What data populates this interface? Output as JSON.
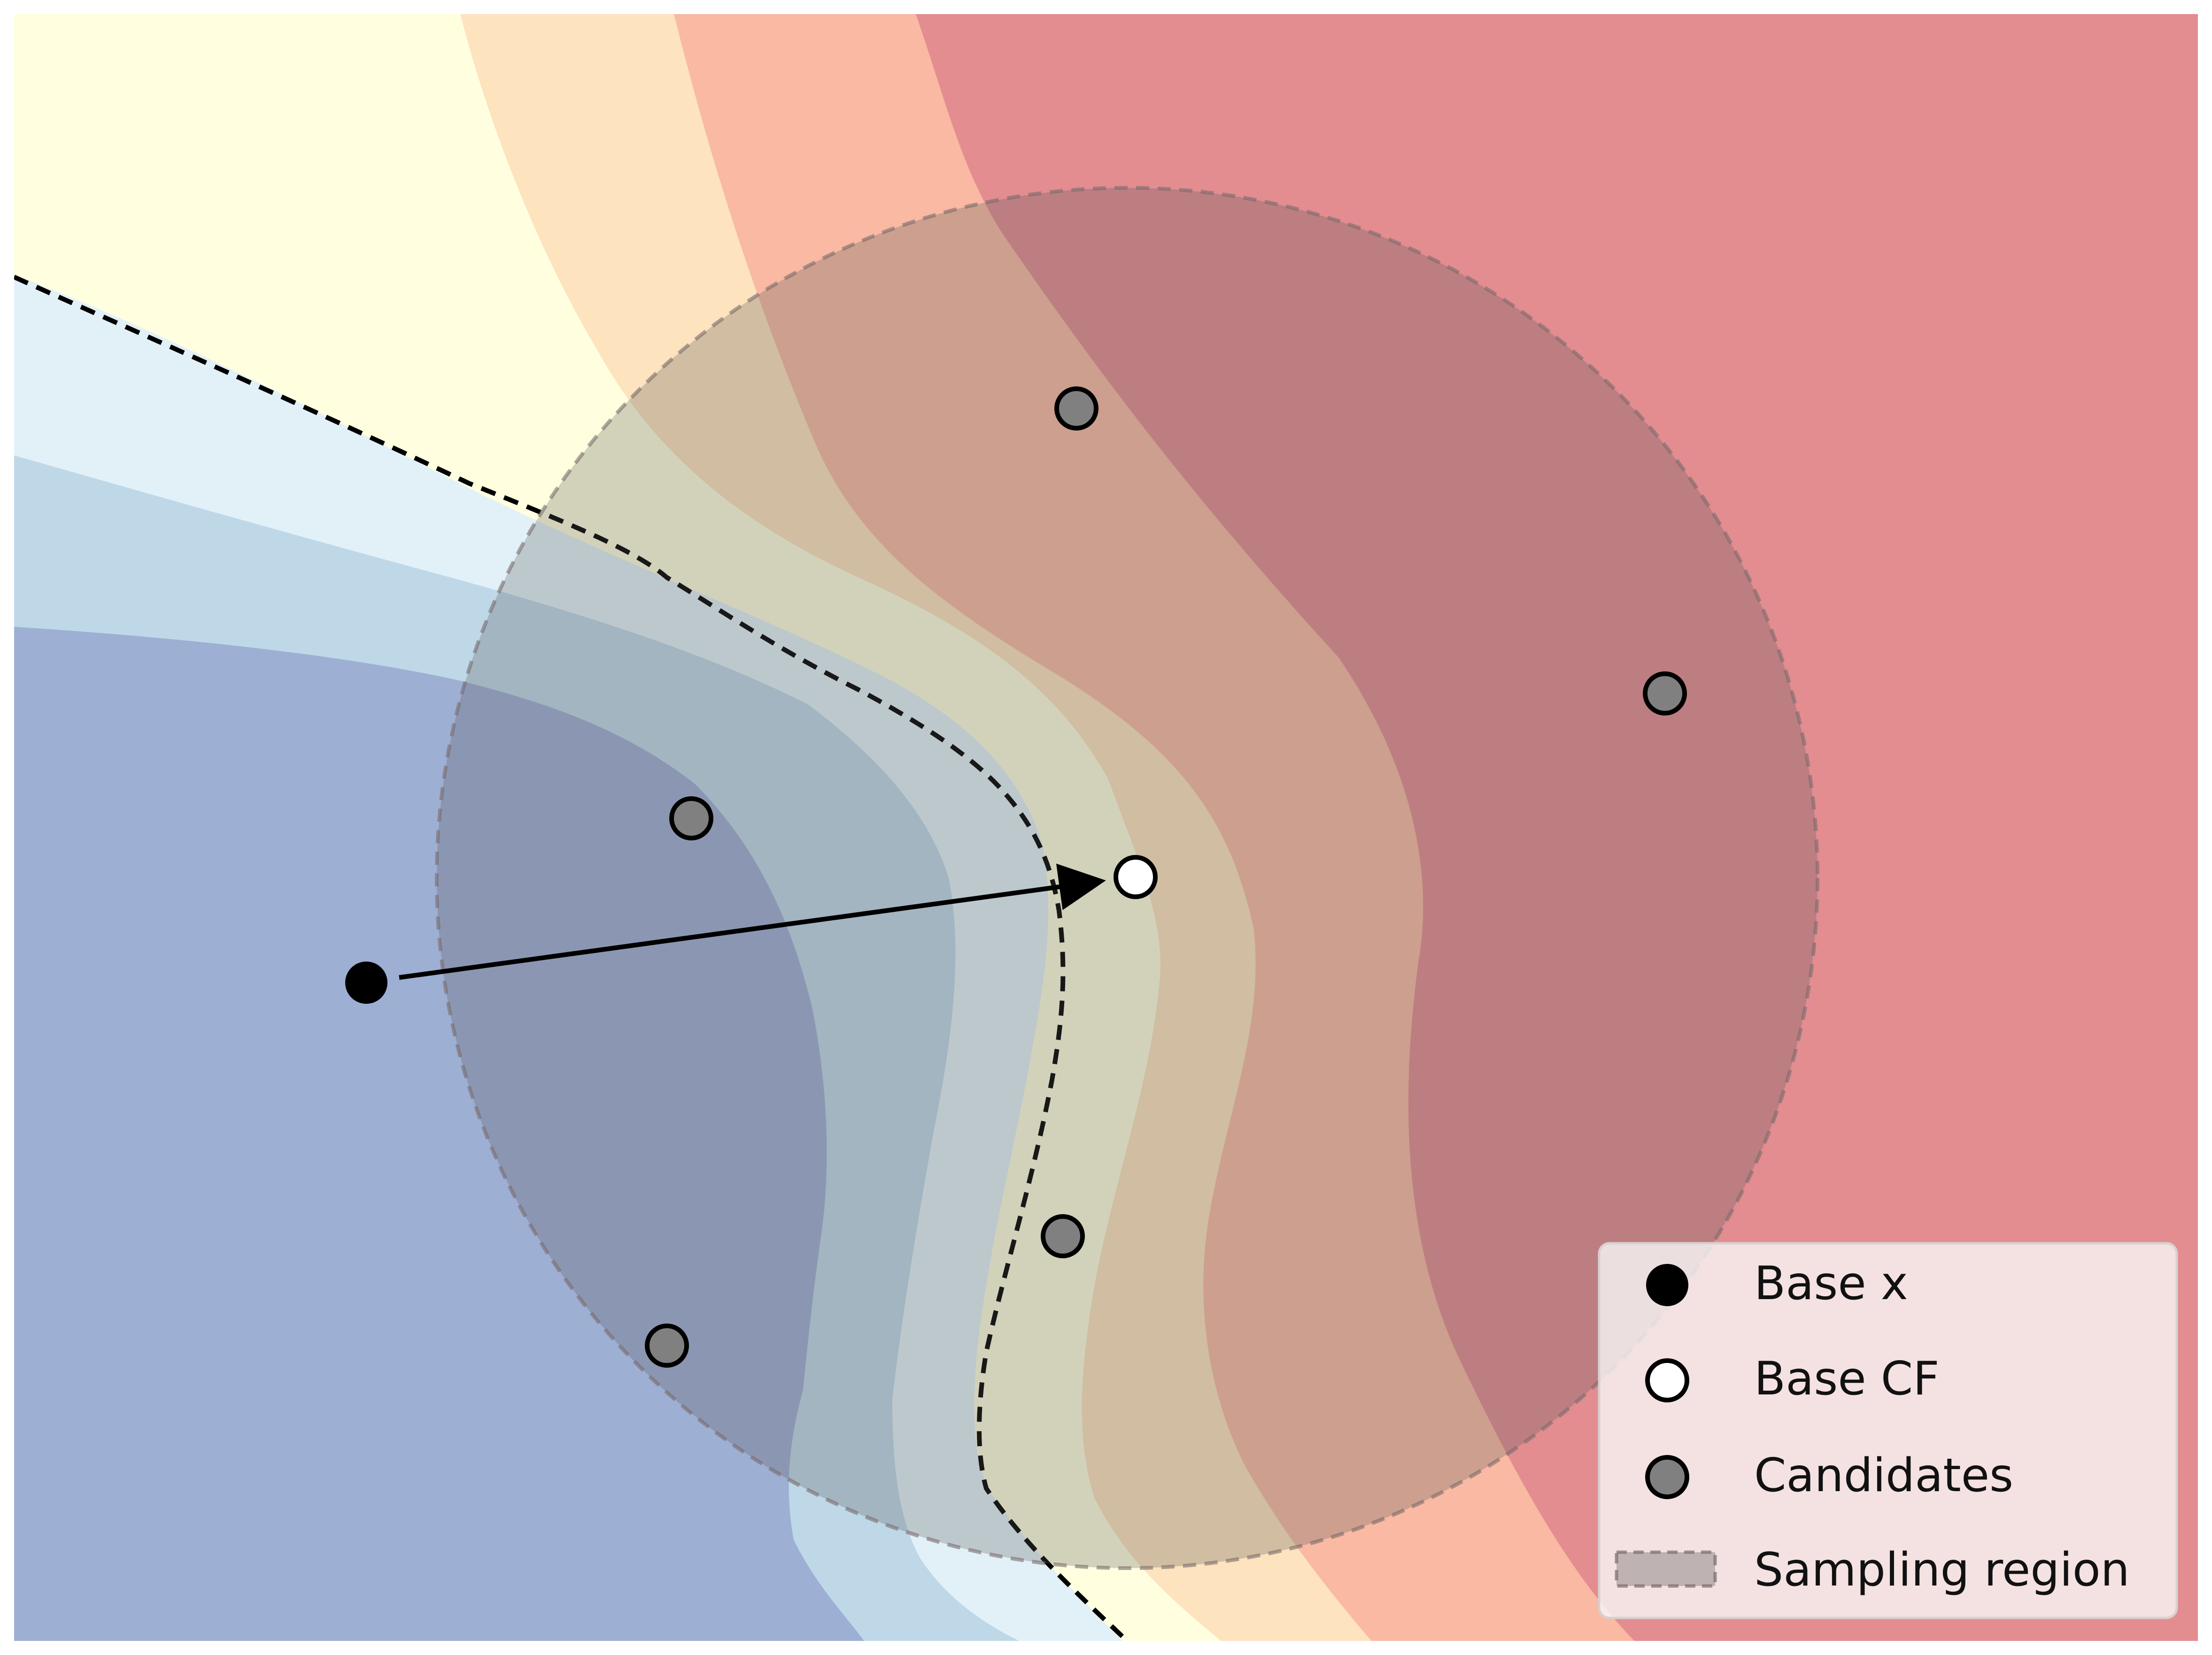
{
  "figure": {
    "colors": {
      "region_dark_blue": "#9eafd4",
      "region_mid_blue": "#bed8e8",
      "region_light_blue": "#e2f1f8",
      "region_light_yellow": "#ffffe0",
      "region_light_orange": "#fde3be",
      "region_orange": "#f9b9a2",
      "region_red": "#e38d91",
      "sampling_region_fill": "#5a5a5a",
      "base_x": "#000000",
      "base_cf": "#ffffff",
      "candidate": "#808080",
      "boundary_line": "#000000",
      "arrow": "#000000"
    },
    "legend": {
      "placement": "bottom-right",
      "items": [
        {
          "label": "Base x",
          "marker": "filled-black-circle"
        },
        {
          "label": "Base CF",
          "marker": "white-circle"
        },
        {
          "label": "Candidates",
          "marker": "gray-circle"
        },
        {
          "label": "Sampling region",
          "marker": "dashed-gray-patch"
        }
      ]
    }
  }
}
